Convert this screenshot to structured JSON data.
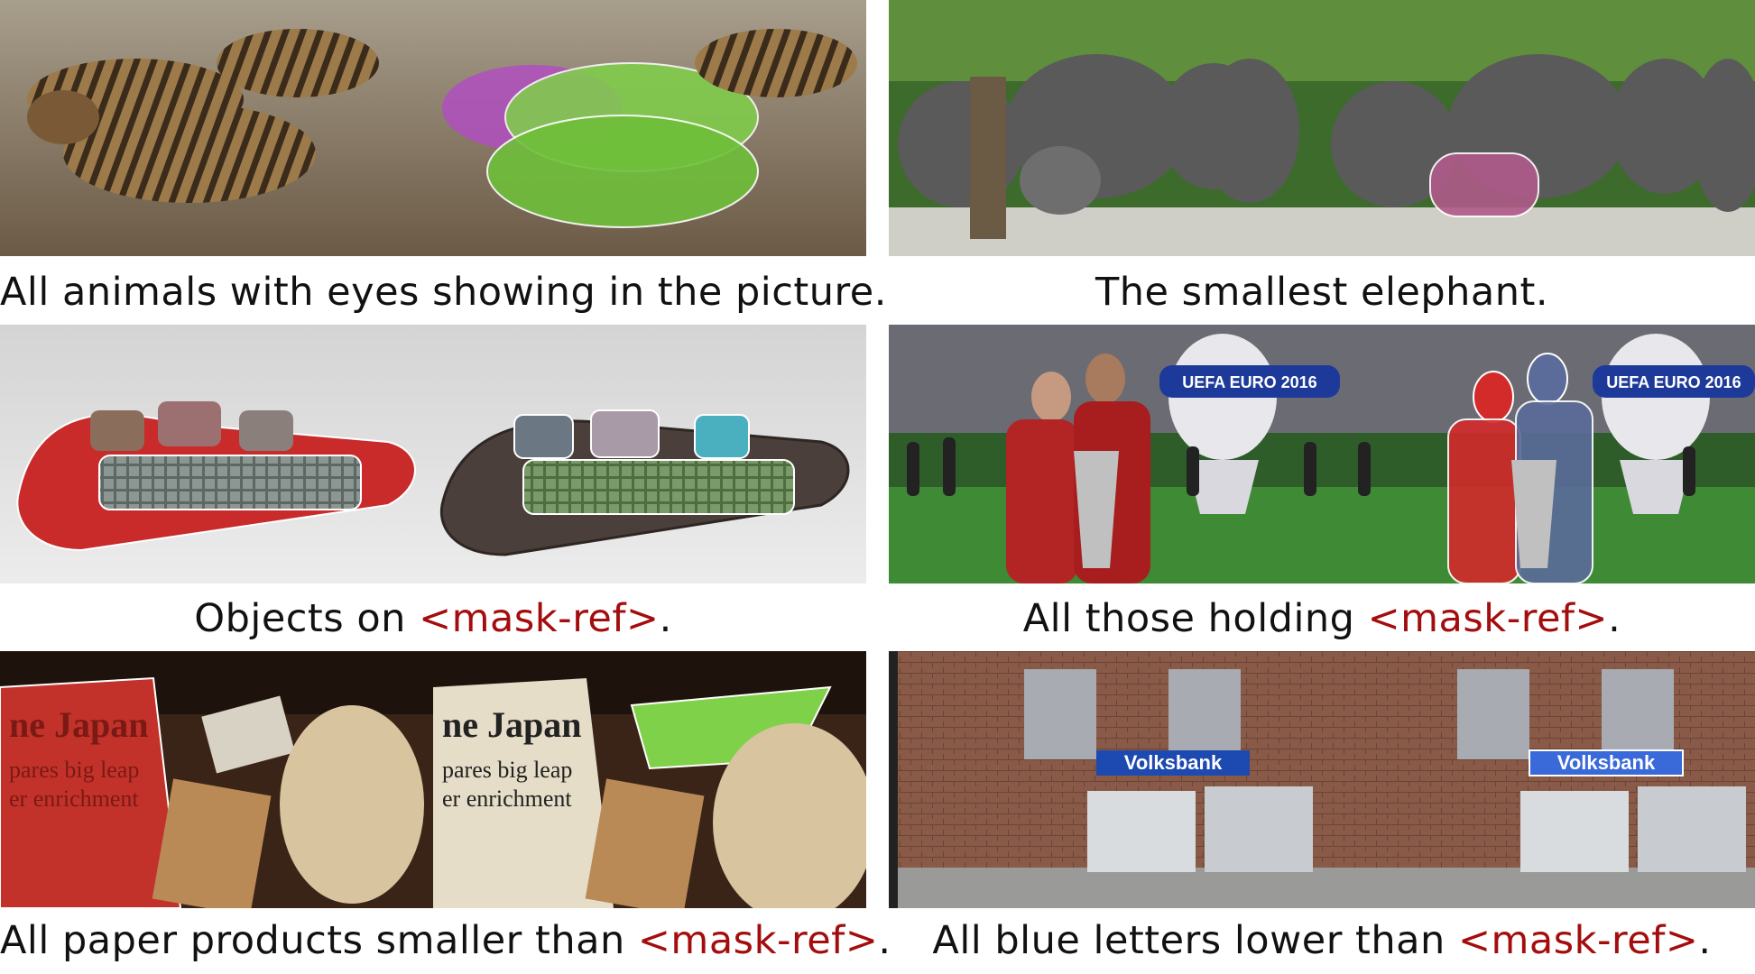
{
  "rows": [
    {
      "left": {
        "caption": {
          "prefix": "All animals with eyes showing in the picture.",
          "ref": "",
          "suffix": ""
        },
        "scene": "boar-piglets",
        "mask_color": "#7fd14a"
      },
      "right": {
        "caption": {
          "prefix": "The smallest elephant.",
          "ref": "",
          "suffix": ""
        },
        "scene": "elephants",
        "mask_color": "#b05a8a"
      }
    },
    {
      "left": {
        "caption": {
          "prefix": "Objects on ",
          "ref": "<mask-ref>",
          "suffix": "."
        },
        "scene": "wicker-sofa",
        "mask_color": "#d32a2a"
      },
      "right": {
        "caption": {
          "prefix": "All those holding ",
          "ref": "<mask-ref>",
          "suffix": "."
        },
        "scene": "euro-2016-celebration",
        "banner_text": "UEFA EURO 2016",
        "mask_color": "#d32a2a"
      }
    },
    {
      "left": {
        "caption": {
          "prefix": "All paper products smaller than ",
          "ref": "<mask-ref>",
          "suffix": "."
        },
        "scene": "newspaper-and-cards",
        "newspaper_text": [
          "ne Japan",
          "pares big leap",
          "er enrichment"
        ],
        "mask_color": "#d32a2a"
      },
      "right": {
        "caption": {
          "prefix": "All blue letters lower than ",
          "ref": "<mask-ref>",
          "suffix": "."
        },
        "scene": "bank-facade",
        "sign_text": "Volksbank",
        "mask_color": "#3a6ad9"
      }
    }
  ],
  "colors": {
    "ref_text": "#a30d0d",
    "caption_text": "#111111"
  }
}
